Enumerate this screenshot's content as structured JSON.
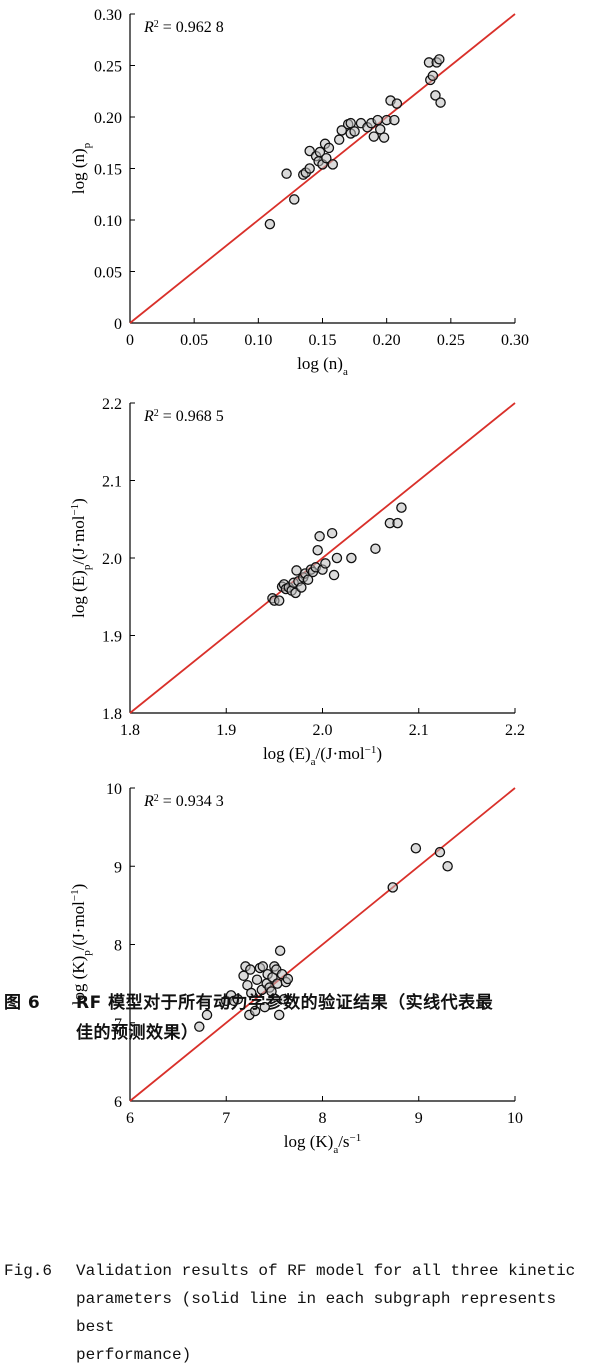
{
  "chart_data": [
    {
      "type": "scatter",
      "xlabel_main": "log (n)",
      "xlabel_sub": "a",
      "ylabel_main": "log (n)",
      "ylabel_sub": "p",
      "r2_label": "R",
      "r2_sup": "2",
      "r2_value": "= 0.962 8",
      "xlim": [
        0,
        0.3
      ],
      "ylim": [
        0,
        0.3
      ],
      "ticks": [
        0,
        0.05,
        0.1,
        0.15,
        0.2,
        0.25,
        0.3
      ],
      "tick_labels": [
        "0",
        "0.05",
        "0.10",
        "0.15",
        "0.20",
        "0.25",
        "0.30"
      ],
      "ideal_line": [
        [
          0,
          0
        ],
        [
          0.3,
          0.3
        ]
      ],
      "points": [
        [
          0.109,
          0.096
        ],
        [
          0.122,
          0.145
        ],
        [
          0.128,
          0.12
        ],
        [
          0.135,
          0.144
        ],
        [
          0.137,
          0.146
        ],
        [
          0.14,
          0.15
        ],
        [
          0.14,
          0.167
        ],
        [
          0.145,
          0.162
        ],
        [
          0.147,
          0.157
        ],
        [
          0.148,
          0.166
        ],
        [
          0.15,
          0.154
        ],
        [
          0.152,
          0.174
        ],
        [
          0.153,
          0.16
        ],
        [
          0.155,
          0.17
        ],
        [
          0.158,
          0.154
        ],
        [
          0.163,
          0.178
        ],
        [
          0.165,
          0.187
        ],
        [
          0.17,
          0.193
        ],
        [
          0.172,
          0.184
        ],
        [
          0.172,
          0.194
        ],
        [
          0.175,
          0.186
        ],
        [
          0.18,
          0.194
        ],
        [
          0.185,
          0.19
        ],
        [
          0.188,
          0.194
        ],
        [
          0.19,
          0.181
        ],
        [
          0.193,
          0.197
        ],
        [
          0.195,
          0.188
        ],
        [
          0.198,
          0.18
        ],
        [
          0.2,
          0.197
        ],
        [
          0.203,
          0.216
        ],
        [
          0.206,
          0.197
        ],
        [
          0.208,
          0.213
        ],
        [
          0.233,
          0.253
        ],
        [
          0.234,
          0.236
        ],
        [
          0.236,
          0.24
        ],
        [
          0.238,
          0.221
        ],
        [
          0.239,
          0.253
        ],
        [
          0.241,
          0.256
        ],
        [
          0.242,
          0.214
        ]
      ]
    },
    {
      "type": "scatter",
      "xlabel_main": "log (E)",
      "xlabel_sub": "a",
      "xlabel_unit": "/(J·mol",
      "xlabel_unit_sup": "−1",
      "xlabel_unit_end": ")",
      "ylabel_main": "log (E)",
      "ylabel_sub": "p",
      "ylabel_unit": "/(J·mol",
      "ylabel_unit_sup": "−1",
      "ylabel_unit_end": ")",
      "r2_label": "R",
      "r2_sup": "2",
      "r2_value": "= 0.968 5",
      "xlim": [
        1.8,
        2.2
      ],
      "ylim": [
        1.8,
        2.2
      ],
      "ticks": [
        1.8,
        1.9,
        2.0,
        2.1,
        2.2
      ],
      "tick_labels": [
        "1.8",
        "1.9",
        "2.0",
        "2.1",
        "2.2"
      ],
      "ideal_line": [
        [
          1.8,
          1.8
        ],
        [
          2.2,
          2.2
        ]
      ],
      "points": [
        [
          1.948,
          1.948
        ],
        [
          1.95,
          1.945
        ],
        [
          1.955,
          1.945
        ],
        [
          1.958,
          1.963
        ],
        [
          1.96,
          1.966
        ],
        [
          1.962,
          1.96
        ],
        [
          1.965,
          1.962
        ],
        [
          1.968,
          1.958
        ],
        [
          1.97,
          1.968
        ],
        [
          1.972,
          1.955
        ],
        [
          1.973,
          1.984
        ],
        [
          1.975,
          1.97
        ],
        [
          1.978,
          1.962
        ],
        [
          1.98,
          1.975
        ],
        [
          1.982,
          1.98
        ],
        [
          1.985,
          1.972
        ],
        [
          1.988,
          1.985
        ],
        [
          1.99,
          1.982
        ],
        [
          1.993,
          1.988
        ],
        [
          1.995,
          2.01
        ],
        [
          1.997,
          2.028
        ],
        [
          2.0,
          1.985
        ],
        [
          2.003,
          1.993
        ],
        [
          2.01,
          2.032
        ],
        [
          2.012,
          1.978
        ],
        [
          2.015,
          2.0
        ],
        [
          2.03,
          2.0
        ],
        [
          2.055,
          2.012
        ],
        [
          2.07,
          2.045
        ],
        [
          2.078,
          2.045
        ],
        [
          2.082,
          2.065
        ]
      ]
    },
    {
      "type": "scatter",
      "xlabel_main": "log (K)",
      "xlabel_sub": "a",
      "xlabel_unit": "/s",
      "xlabel_unit_sup": "−1",
      "xlabel_unit_end": "",
      "ylabel_main": "log (K)",
      "ylabel_sub": "p",
      "ylabel_unit": "/(J·mol",
      "ylabel_unit_sup": "−1",
      "ylabel_unit_end": ")",
      "r2_label": "R",
      "r2_sup": "2",
      "r2_value": "= 0.934 3",
      "xlim": [
        6,
        10
      ],
      "ylim": [
        6,
        10
      ],
      "ticks": [
        6,
        7,
        8,
        9,
        10
      ],
      "tick_labels": [
        "6",
        "7",
        "8",
        "9",
        "10"
      ],
      "ideal_line": [
        [
          6,
          6
        ],
        [
          10,
          10
        ]
      ],
      "points": [
        [
          6.72,
          6.95
        ],
        [
          6.8,
          7.1
        ],
        [
          7.0,
          7.28
        ],
        [
          7.05,
          7.35
        ],
        [
          7.08,
          7.28
        ],
        [
          7.12,
          7.3
        ],
        [
          7.18,
          7.6
        ],
        [
          7.2,
          7.72
        ],
        [
          7.22,
          7.48
        ],
        [
          7.24,
          7.1
        ],
        [
          7.25,
          7.68
        ],
        [
          7.26,
          7.38
        ],
        [
          7.3,
          7.15
        ],
        [
          7.32,
          7.55
        ],
        [
          7.35,
          7.7
        ],
        [
          7.37,
          7.42
        ],
        [
          7.38,
          7.72
        ],
        [
          7.4,
          7.2
        ],
        [
          7.42,
          7.5
        ],
        [
          7.43,
          7.62
        ],
        [
          7.45,
          7.45
        ],
        [
          7.47,
          7.4
        ],
        [
          7.48,
          7.58
        ],
        [
          7.5,
          7.72
        ],
        [
          7.52,
          7.68
        ],
        [
          7.53,
          7.5
        ],
        [
          7.55,
          7.1
        ],
        [
          7.56,
          7.92
        ],
        [
          7.58,
          7.62
        ],
        [
          7.6,
          7.3
        ],
        [
          7.62,
          7.52
        ],
        [
          7.64,
          7.56
        ],
        [
          8.73,
          8.73
        ],
        [
          8.97,
          9.23
        ],
        [
          9.22,
          9.18
        ],
        [
          9.3,
          9.0
        ]
      ]
    }
  ],
  "caption": {
    "zh_label": "图 6",
    "zh_text_1": "RF 模型对于所有动力学参数的验证结果（实线代表最",
    "zh_text_2": "佳的预测效果）",
    "en_label": "Fig.6",
    "en_text_1": "Validation results of RF model for all three kinetic",
    "en_text_2": "parameters (solid line in each subgraph represents best",
    "en_text_3": "performance)"
  },
  "colors": {
    "ideal_line": "#d9302a",
    "marker_edge": "#111111",
    "marker_fill": "#bdbdbd",
    "axis": "#000000"
  }
}
